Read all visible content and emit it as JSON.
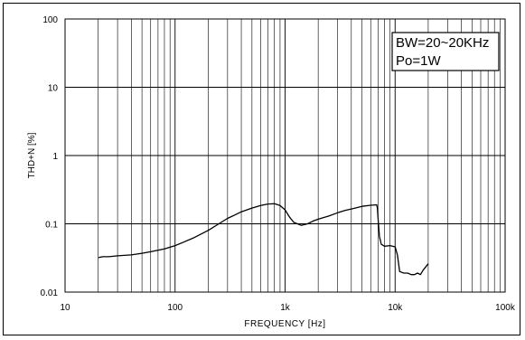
{
  "chart_data": {
    "type": "line",
    "xlabel": "FREQUENCY [Hz]",
    "ylabel": "THD+N [%]",
    "xscale": "log",
    "yscale": "log",
    "xlim": [
      10,
      100000
    ],
    "ylim": [
      0.01,
      100
    ],
    "grid": true,
    "x_ticks": [
      10,
      100,
      1000,
      10000,
      100000
    ],
    "x_tick_labels": [
      "10",
      "100",
      "1k",
      "10k",
      "100k"
    ],
    "y_ticks": [
      0.01,
      0.1,
      1,
      10,
      100
    ],
    "y_tick_labels": [
      "0.01",
      "0.1",
      "1",
      "10",
      "100"
    ],
    "annotations": [
      "BW=20~20KHz",
      "Po=1W"
    ],
    "annotation_position": "top-right",
    "series": [
      {
        "color": "#000000",
        "x": [
          20,
          22,
          25,
          30,
          40,
          50,
          60,
          80,
          100,
          120,
          150,
          200,
          250,
          300,
          350,
          400,
          500,
          600,
          700,
          800,
          900,
          1000,
          1100,
          1200,
          1400,
          1600,
          1800,
          2000,
          2500,
          3000,
          3500,
          4000,
          5000,
          6000,
          6800,
          6900,
          7000,
          7200,
          7500,
          8000,
          9000,
          10000,
          10500,
          11000,
          12000,
          13000,
          14000,
          15000,
          16000,
          17000,
          18000,
          20000
        ],
        "y": [
          0.032,
          0.033,
          0.033,
          0.034,
          0.035,
          0.037,
          0.039,
          0.043,
          0.048,
          0.054,
          0.063,
          0.08,
          0.1,
          0.12,
          0.135,
          0.15,
          0.17,
          0.185,
          0.195,
          0.197,
          0.185,
          0.16,
          0.125,
          0.105,
          0.095,
          0.1,
          0.11,
          0.117,
          0.13,
          0.145,
          0.157,
          0.165,
          0.18,
          0.187,
          0.19,
          0.17,
          0.12,
          0.065,
          0.05,
          0.047,
          0.048,
          0.046,
          0.035,
          0.02,
          0.019,
          0.019,
          0.018,
          0.018,
          0.019,
          0.018,
          0.021,
          0.026
        ]
      }
    ]
  }
}
